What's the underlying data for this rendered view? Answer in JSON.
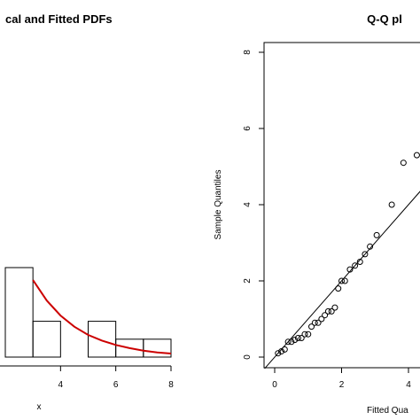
{
  "chart_data": [
    {
      "type": "bar",
      "title": "cal and Fitted PDFs",
      "xlabel": "x",
      "xlim": [
        1.4,
        8
      ],
      "x_ticks": [
        4,
        6,
        8
      ],
      "ylim": [
        0,
        0.55
      ],
      "histogram": {
        "bins": [
          [
            2,
            3
          ],
          [
            3,
            4
          ],
          [
            5,
            6
          ],
          [
            6,
            7
          ],
          [
            7,
            8
          ]
        ],
        "values": [
          0.25,
          0.1,
          0.1,
          0.05,
          0.05
        ]
      },
      "fitted_curve": {
        "color": "#cc0000",
        "x": [
          3.0,
          3.5,
          4.0,
          4.5,
          5.0,
          5.5,
          6.0,
          6.5,
          7.0,
          7.5,
          8.0
        ],
        "y": [
          0.215,
          0.158,
          0.116,
          0.085,
          0.062,
          0.046,
          0.034,
          0.025,
          0.018,
          0.013,
          0.01
        ]
      }
    },
    {
      "type": "scatter",
      "title": "Q-Q pl",
      "xlabel": "Fitted Qua",
      "ylabel": "Sample Quantiles",
      "xlim": [
        -0.3,
        5
      ],
      "ylim": [
        -0.3,
        8.3
      ],
      "x_ticks": [
        0,
        2,
        4
      ],
      "y_ticks": [
        0,
        2,
        4,
        6,
        8
      ],
      "reference_line": {
        "slope": 1,
        "intercept": 0
      },
      "points": [
        [
          0.1,
          0.1
        ],
        [
          0.2,
          0.15
        ],
        [
          0.3,
          0.2
        ],
        [
          0.4,
          0.4
        ],
        [
          0.5,
          0.4
        ],
        [
          0.6,
          0.45
        ],
        [
          0.7,
          0.5
        ],
        [
          0.8,
          0.5
        ],
        [
          0.9,
          0.6
        ],
        [
          1.0,
          0.6
        ],
        [
          1.1,
          0.8
        ],
        [
          1.2,
          0.9
        ],
        [
          1.3,
          0.9
        ],
        [
          1.4,
          1.0
        ],
        [
          1.5,
          1.1
        ],
        [
          1.6,
          1.2
        ],
        [
          1.7,
          1.2
        ],
        [
          1.8,
          1.3
        ],
        [
          1.9,
          1.8
        ],
        [
          2.0,
          2.0
        ],
        [
          2.1,
          2.0
        ],
        [
          2.25,
          2.3
        ],
        [
          2.4,
          2.4
        ],
        [
          2.55,
          2.5
        ],
        [
          2.7,
          2.7
        ],
        [
          2.85,
          2.9
        ],
        [
          3.05,
          3.2
        ],
        [
          3.5,
          4.0
        ],
        [
          3.85,
          5.1
        ],
        [
          4.25,
          5.3
        ]
      ]
    }
  ]
}
